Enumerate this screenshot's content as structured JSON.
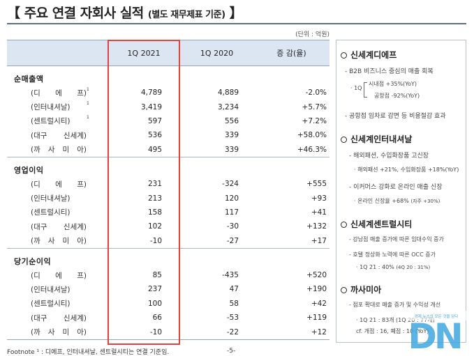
{
  "title": {
    "main": "【 주요 연결 자회사 실적",
    "sub": "(별도 재무제표 기준)",
    "close": "】"
  },
  "unit": "(단위 : 억원)",
  "table": {
    "headers": [
      "",
      "1Q 2021",
      "1Q 2020",
      "증 감(율)"
    ],
    "groups": [
      {
        "name": "순매출액",
        "rows": [
          {
            "label": "(디 에 프)",
            "sup": "1",
            "q21": "4,789",
            "q20": "4,889",
            "chg": "-2.0%"
          },
          {
            "label": "(인터내셔날)",
            "sup": "1",
            "q21": "3,419",
            "q20": "3,234",
            "chg": "+5.7%"
          },
          {
            "label": "(센트럴시티)",
            "sup": "1",
            "q21": "597",
            "q20": "556",
            "chg": "+7.2%"
          },
          {
            "label": "(대구 신세계)",
            "sup": "",
            "q21": "536",
            "q20": "339",
            "chg": "+58.0%"
          },
          {
            "label": "(까 사 미 아)",
            "sup": "",
            "q21": "495",
            "q20": "339",
            "chg": "+46.3%"
          }
        ]
      },
      {
        "name": "영업이익",
        "rows": [
          {
            "label": "(디 에 프)",
            "sup": "",
            "q21": "231",
            "q20": "-324",
            "chg": "+555"
          },
          {
            "label": "(인터내셔날)",
            "sup": "",
            "q21": "213",
            "q20": "120",
            "chg": "+93"
          },
          {
            "label": "(센트럴시티)",
            "sup": "",
            "q21": "158",
            "q20": "117",
            "chg": "+41"
          },
          {
            "label": "(대구 신세계)",
            "sup": "",
            "q21": "102",
            "q20": "-30",
            "chg": "+132"
          },
          {
            "label": "(까 사 미 아)",
            "sup": "",
            "q21": "-10",
            "q20": "-27",
            "chg": "+17"
          }
        ]
      },
      {
        "name": "당기순이익",
        "rows": [
          {
            "label": "(디 에 프)",
            "sup": "",
            "q21": "85",
            "q20": "-435",
            "chg": "+520"
          },
          {
            "label": "(인터내셔날)",
            "sup": "",
            "q21": "237",
            "q20": "47",
            "chg": "+190"
          },
          {
            "label": "(센트럴시티)",
            "sup": "",
            "q21": "100",
            "q20": "58",
            "chg": "+42"
          },
          {
            "label": "(대구 신세계)",
            "sup": "",
            "q21": "66",
            "q20": "-53",
            "chg": "+119"
          },
          {
            "label": "(까 사 미 아)",
            "sup": "",
            "q21": "-10",
            "q20": "-22",
            "chg": "+12"
          }
        ]
      }
    ]
  },
  "panel": {
    "s1": {
      "title": "신세계디에프",
      "l1": "- B2B 비즈니스 중심의 매출 회복",
      "q": "· 1Q",
      "a": "시내점 +35%(YoY)",
      "b": "공항점 -92%(YoY)",
      "l2": "- 공항점 임차료 감면 등 비용절감 효과"
    },
    "s2": {
      "title": "신세계인터내셔날",
      "l1": "- 해외패션, 수입화장품 고신장",
      "l2": "· 해외패션 +21%, 수입화장품 +18%(YoY)",
      "l3": "- 이커머스 강화로 온라인 매출 신장",
      "l4": "· 온라인 신장율 +68%",
      "l4s": "(자주 +30%)"
    },
    "s3": {
      "title": "신세계센트럴시티",
      "l1": "- 강남점 매출 증가에 따른 임대수익 증가",
      "l2": "- 호텔 정상화 노력에 따른 OCC 증가",
      "l3": "· 1Q 21 : 40%",
      "l3s": "(4Q 20 : 31%)"
    },
    "s4": {
      "title": "까사미아",
      "l1": "- 점포 확대로 매출 증가 및 수익성 개선",
      "l2": "· 1Q 21 : 83개 (1Q 20 : 77개)",
      "l3": "cf. 개점 : 16, 폐점 : 10 (YoY)"
    }
  },
  "footnote": "Footnote ¹ :  디에프, 인터내셔날, 센트럴시티는 연결 기준임.",
  "page": "-5-",
  "logo": {
    "text": "DN",
    "tagline": "경제 뉴스의 모든 것을 담다"
  },
  "colors": {
    "header_bg": "#dbe6f2",
    "highlight": "#e04040",
    "rule": "#5a6f86",
    "logo": "#3fa8df"
  }
}
